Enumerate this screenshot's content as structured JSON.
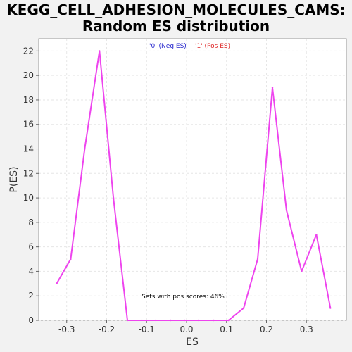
{
  "chart_data": {
    "type": "line",
    "title_line1": "KEGG_CELL_ADHESION_MOLECULES_CAMS:",
    "title_line2": "Random ES distribution",
    "xlabel": "ES",
    "ylabel": "P(ES)",
    "xlim": [
      -0.37,
      0.4
    ],
    "ylim": [
      0,
      23
    ],
    "x_ticks": [
      -0.3,
      -0.2,
      -0.1,
      0.0,
      0.1,
      0.2,
      0.3
    ],
    "x_tick_labels": [
      "-0.3",
      "-0.2",
      "-0.1",
      "0.0",
      "0.1",
      "0.2",
      "0.3"
    ],
    "y_ticks": [
      0,
      2,
      4,
      6,
      8,
      10,
      12,
      14,
      16,
      18,
      20,
      22
    ],
    "y_tick_labels": [
      "0",
      "2",
      "4",
      "6",
      "8",
      "10",
      "12",
      "14",
      "16",
      "18",
      "20",
      "22"
    ],
    "grid": true,
    "legend": {
      "placement": "top-center",
      "neg_label": "'0' (Neg ES)",
      "neg_color": "#2222cc",
      "pos_label": "'1' (Pos ES)",
      "pos_color": "#dd2222"
    },
    "annotation": "Sets with pos scores: 46%",
    "series": [
      {
        "color": "#ee44ee",
        "x": [
          -0.325,
          -0.29,
          -0.255,
          -0.218,
          -0.183,
          -0.148,
          -0.112,
          -0.077,
          -0.04,
          -0.005,
          0.03,
          0.068,
          0.105,
          0.143,
          0.178,
          0.215,
          0.25,
          0.288,
          0.325,
          0.36
        ],
        "y": [
          3,
          5,
          14,
          22,
          10,
          0,
          0,
          0,
          0,
          0,
          0,
          0,
          0,
          1,
          5,
          19,
          9,
          4,
          7,
          1
        ]
      }
    ]
  }
}
